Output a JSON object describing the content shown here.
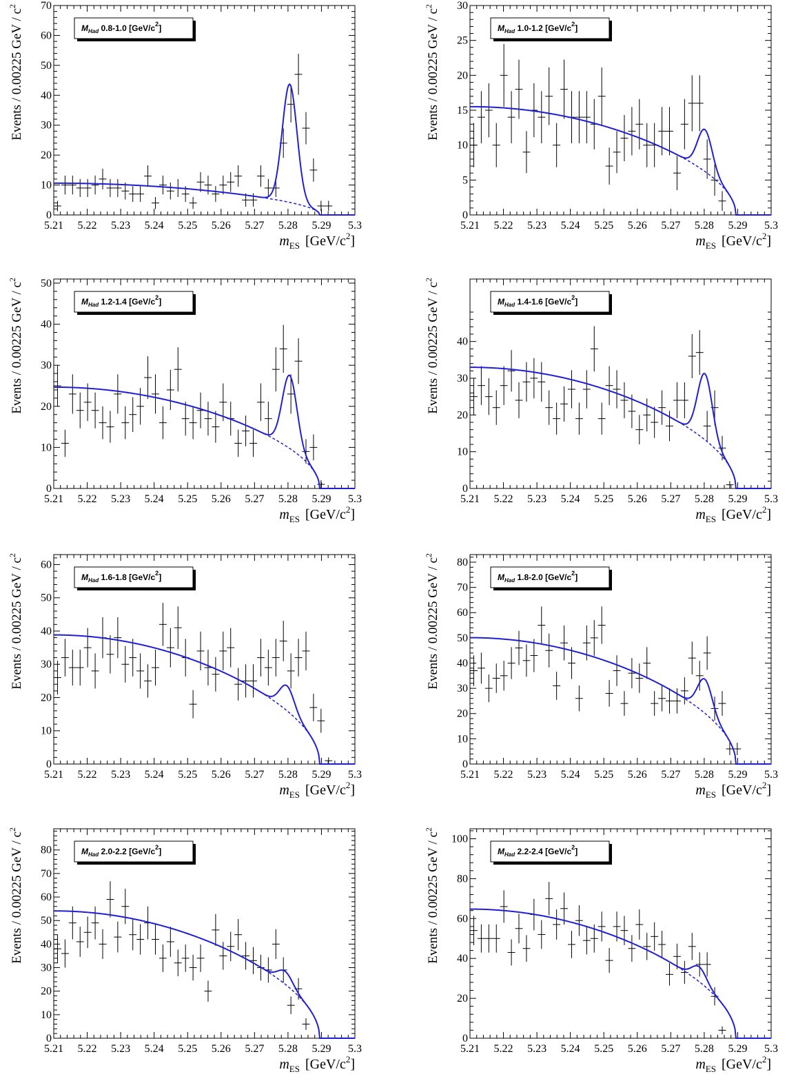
{
  "figure": {
    "y_axis_title": "Events / 0.00225 GeV / c",
    "y_axis_title_sup": "2",
    "x_axis_title_main": "m",
    "x_axis_title_sub": "ES",
    "x_axis_title_unit": "[GeV/c",
    "x_axis_title_unit_sup": "2",
    "x_axis_title_close": "]",
    "legend_prefix": "M",
    "legend_prefix_sub": "Had",
    "line_color": "#1f1fd6",
    "data_color": "#000000"
  },
  "chart_data": [
    {
      "type": "scatter",
      "legend": "0.8-1.0 [GeV/c",
      "legend_sup": "2",
      "legend_close": "]",
      "x_ticks": [
        "5.21",
        "5.22",
        "5.23",
        "5.24",
        "5.25",
        "5.26",
        "5.27",
        "5.28",
        "5.29",
        "5.3"
      ],
      "y_ticks": [
        "0",
        "10",
        "20",
        "30",
        "40",
        "50",
        "60",
        "70"
      ],
      "xlim": [
        5.21,
        5.3
      ],
      "ylim": [
        0,
        70
      ],
      "values": [
        3,
        10,
        10,
        9,
        9,
        10,
        12,
        9,
        9,
        8,
        7,
        7,
        13,
        4,
        10,
        8,
        9,
        7,
        4,
        11,
        10,
        7,
        10,
        11,
        13,
        5,
        5,
        13,
        9,
        9,
        24,
        37,
        47,
        29,
        15,
        3,
        3
      ],
      "fit": {
        "bkg": 8.7,
        "peak": 39.5,
        "peak_pos": 5.2805,
        "width": 0.0022
      }
    },
    {
      "type": "scatter",
      "legend": "1.0-1.2 [GeV/c",
      "legend_sup": "2",
      "legend_close": "]",
      "x_ticks": [
        "5.21",
        "5.22",
        "5.23",
        "5.24",
        "5.25",
        "5.26",
        "5.27",
        "5.28",
        "5.29",
        "5.3"
      ],
      "y_ticks": [
        "0",
        "5",
        "10",
        "15",
        "20",
        "25",
        "30"
      ],
      "xlim": [
        5.21,
        5.3
      ],
      "ylim": [
        0,
        30
      ],
      "values": [
        10,
        14,
        15,
        10,
        20,
        14,
        18,
        9,
        15,
        14,
        17,
        10,
        18,
        14,
        14,
        14,
        13,
        17,
        7,
        9,
        11,
        12,
        13,
        10,
        10,
        12,
        12,
        6,
        13,
        16,
        16,
        8,
        5,
        2
      ],
      "fit": {
        "bkg": 12.7,
        "peak": 6.0,
        "peak_pos": 5.2802,
        "width": 0.0022
      }
    },
    {
      "type": "scatter",
      "legend": "1.2-1.4 [GeV/c",
      "legend_sup": "2",
      "legend_close": "]",
      "x_ticks": [
        "5.21",
        "5.22",
        "5.23",
        "5.24",
        "5.25",
        "5.26",
        "5.27",
        "5.28",
        "5.29",
        "5.3"
      ],
      "y_ticks": [
        "0",
        "10",
        "20",
        "30",
        "40",
        "50"
      ],
      "xlim": [
        5.21,
        5.3
      ],
      "ylim": [
        0,
        51
      ],
      "values": [
        25,
        11,
        23,
        19,
        21,
        19,
        16,
        15,
        23,
        16,
        18,
        20,
        27,
        23,
        16,
        24,
        29,
        17,
        16,
        19,
        17,
        15,
        21,
        17,
        11,
        14,
        11,
        21,
        17,
        29,
        34,
        23,
        31,
        9,
        10,
        1
      ],
      "fit": {
        "bkg": 20.2,
        "peak": 17.8,
        "peak_pos": 5.2805,
        "width": 0.0022
      }
    },
    {
      "type": "scatter",
      "legend": "1.4-1.6 [GeV/c",
      "legend_sup": "2",
      "legend_close": "]",
      "x_ticks": [
        "5.21",
        "5.22",
        "5.23",
        "5.24",
        "5.25",
        "5.26",
        "5.27",
        "5.28",
        "5.29",
        "5.3"
      ],
      "y_ticks": [
        "0",
        "10",
        "20",
        "30",
        "40"
      ],
      "xlim": [
        5.21,
        5.3
      ],
      "ylim": [
        0,
        57
      ],
      "values": [
        25,
        28,
        25,
        22,
        28,
        32,
        24,
        29,
        30,
        29,
        22,
        19,
        23,
        27,
        19,
        27,
        38,
        19,
        28,
        27,
        24,
        21,
        16,
        20,
        18,
        22,
        17,
        24,
        24,
        36,
        37,
        17,
        22,
        11,
        1
      ],
      "fit": {
        "bkg": 27.0,
        "peak": 18.0,
        "peak_pos": 5.2802,
        "width": 0.0022
      }
    },
    {
      "type": "scatter",
      "legend": "1.6-1.8 [GeV/c",
      "legend_sup": "2",
      "legend_close": "]",
      "x_ticks": [
        "5.21",
        "5.22",
        "5.23",
        "5.24",
        "5.25",
        "5.26",
        "5.27",
        "5.28",
        "5.29",
        "5.3"
      ],
      "y_ticks": [
        "0",
        "10",
        "20",
        "30",
        "40",
        "50",
        "60"
      ],
      "xlim": [
        5.21,
        5.3
      ],
      "ylim": [
        0,
        63
      ],
      "values": [
        26,
        32,
        29,
        29,
        35,
        28,
        38,
        33,
        38,
        30,
        32,
        28,
        25,
        29,
        42,
        35,
        41,
        32,
        18,
        34,
        29,
        27,
        34,
        35,
        24,
        25,
        25,
        32,
        29,
        32,
        37,
        28,
        32,
        34,
        17,
        13,
        1
      ],
      "fit": {
        "bkg": 31.8,
        "peak": 7.5,
        "peak_pos": 5.2797,
        "width": 0.0022
      }
    },
    {
      "type": "scatter",
      "legend": "1.8-2.0 [GeV/c",
      "legend_sup": "2",
      "legend_close": "]",
      "x_ticks": [
        "5.21",
        "5.22",
        "5.23",
        "5.24",
        "5.25",
        "5.26",
        "5.27",
        "5.28",
        "5.29",
        "5.3"
      ],
      "y_ticks": [
        "0",
        "10",
        "20",
        "30",
        "40",
        "50",
        "60",
        "70",
        "80"
      ],
      "xlim": [
        5.21,
        5.3
      ],
      "ylim": [
        0,
        83
      ],
      "values": [
        37,
        38,
        30,
        34,
        35,
        40,
        46,
        41,
        43,
        55,
        45,
        31,
        48,
        40,
        26,
        48,
        50,
        55,
        28,
        37,
        24,
        36,
        34,
        40,
        24,
        26,
        25,
        25,
        29,
        42,
        35,
        44,
        22,
        24,
        6,
        6
      ],
      "fit": {
        "bkg": 41.0,
        "peak": 13.5,
        "peak_pos": 5.2802,
        "width": 0.0022
      }
    },
    {
      "type": "scatter",
      "legend": "2.0-2.2 [GeV/c",
      "legend_sup": "2",
      "legend_close": "]",
      "x_ticks": [
        "5.21",
        "5.22",
        "5.23",
        "5.24",
        "5.25",
        "5.26",
        "5.27",
        "5.28",
        "5.29",
        "5.3"
      ],
      "y_ticks": [
        "0",
        "10",
        "20",
        "30",
        "40",
        "50",
        "60",
        "70",
        "80"
      ],
      "xlim": [
        5.21,
        5.3
      ],
      "ylim": [
        0,
        89
      ],
      "values": [
        38,
        36,
        49,
        41,
        45,
        49,
        40,
        59,
        43,
        56,
        44,
        42,
        49,
        42,
        34,
        41,
        32,
        34,
        30,
        34,
        20,
        46,
        35,
        39,
        44,
        35,
        33,
        30,
        29,
        40,
        29,
        14,
        21,
        6
      ],
      "fit": {
        "bkg": 44.3,
        "peak": 5.5,
        "peak_pos": 5.2792,
        "width": 0.0022
      }
    },
    {
      "type": "scatter",
      "legend": "2.2-2.4 [GeV/c",
      "legend_sup": "2",
      "legend_close": "]",
      "x_ticks": [
        "5.21",
        "5.22",
        "5.23",
        "5.24",
        "5.25",
        "5.26",
        "5.27",
        "5.28",
        "5.29",
        "5.3"
      ],
      "y_ticks": [
        "0",
        "20",
        "40",
        "60",
        "80",
        "100"
      ],
      "xlim": [
        5.21,
        5.3
      ],
      "ylim": [
        0,
        105
      ],
      "values": [
        54,
        50,
        50,
        50,
        66,
        43,
        55,
        45,
        62,
        52,
        70,
        57,
        65,
        47,
        59,
        49,
        50,
        56,
        39,
        56,
        54,
        45,
        57,
        46,
        51,
        47,
        32,
        41,
        33,
        46,
        37,
        37,
        21,
        4
      ],
      "fit": {
        "bkg": 53.0,
        "peak": 7.5,
        "peak_pos": 5.2785,
        "width": 0.0022
      }
    }
  ]
}
